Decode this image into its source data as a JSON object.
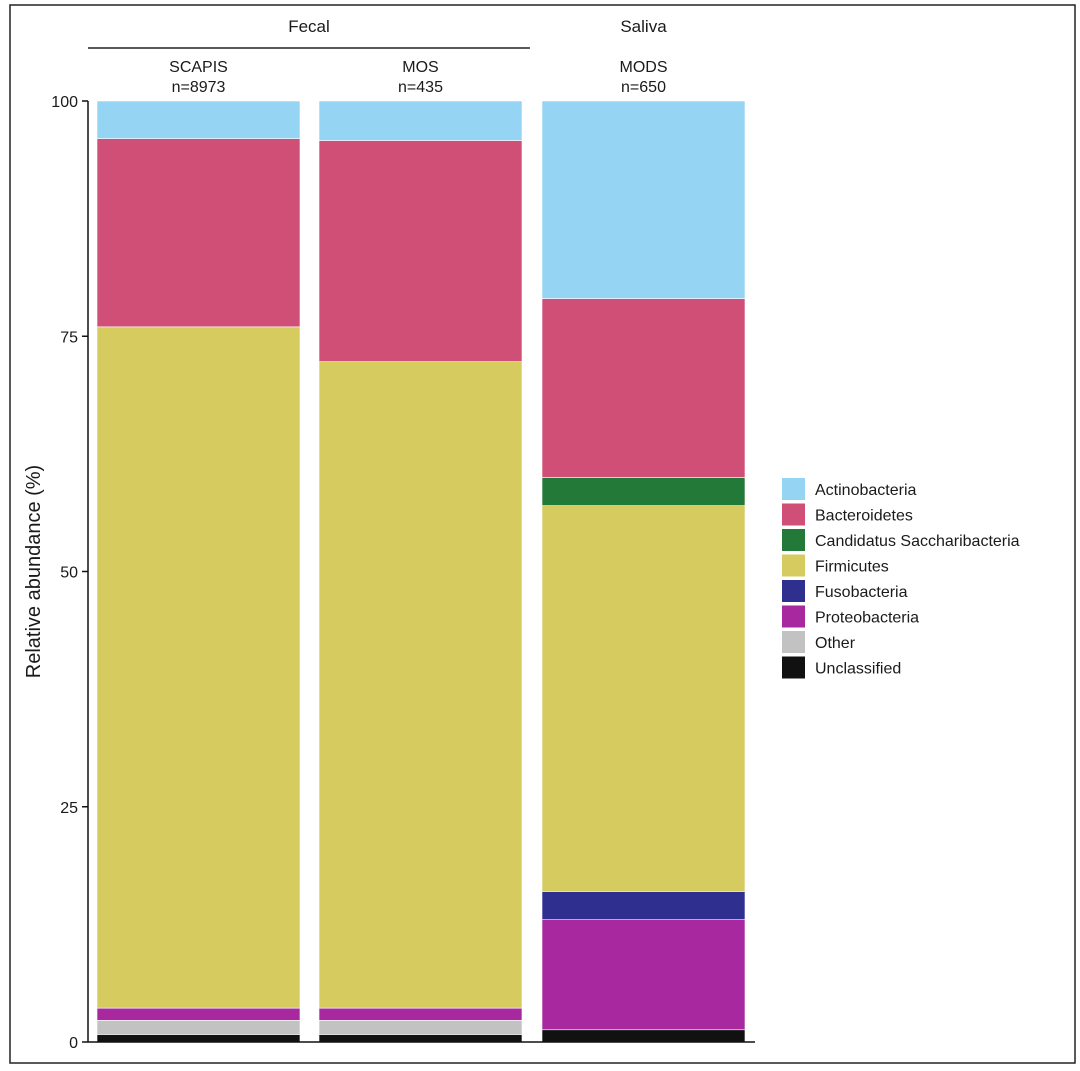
{
  "chart_data": {
    "type": "bar",
    "stacked": true,
    "ylabel": "Relative abundance (%)",
    "ylim": [
      0,
      100
    ],
    "yticks": [
      0,
      25,
      50,
      75,
      100
    ],
    "groups": [
      {
        "label": "Fecal",
        "panels": [
          "SCAPIS",
          "MOS"
        ]
      },
      {
        "label": "Saliva",
        "panels": [
          "MODS"
        ]
      }
    ],
    "categories": [
      "SCAPIS",
      "MOS",
      "MODS"
    ],
    "category_n": [
      "n=8973",
      "n=435",
      "n=650"
    ],
    "series": [
      {
        "name": "Unclassified",
        "color": "#111111",
        "values": [
          0.8,
          0.8,
          1.3
        ]
      },
      {
        "name": "Other",
        "color": "#c2c2c2",
        "values": [
          1.5,
          1.5,
          0.0
        ]
      },
      {
        "name": "Proteobacteria",
        "color": "#a8299f",
        "values": [
          1.3,
          1.3,
          11.7
        ]
      },
      {
        "name": "Fusobacteria",
        "color": "#2e2f8f",
        "values": [
          0.0,
          0.0,
          3.0
        ]
      },
      {
        "name": "Firmicutes",
        "color": "#d6cb5f",
        "values": [
          72.4,
          68.7,
          41.0
        ]
      },
      {
        "name": "Candidatus Saccharibacteria",
        "color": "#237a38",
        "values": [
          0.0,
          0.0,
          3.0
        ]
      },
      {
        "name": "Bacteroidetes",
        "color": "#cf4f76",
        "values": [
          20.0,
          23.5,
          19.0
        ]
      },
      {
        "name": "Actinobacteria",
        "color": "#95d4f2",
        "values": [
          4.0,
          4.2,
          21.0
        ]
      }
    ],
    "legend": {
      "position": "right",
      "order": [
        "Actinobacteria",
        "Bacteroidetes",
        "Candidatus Saccharibacteria",
        "Firmicutes",
        "Fusobacteria",
        "Proteobacteria",
        "Other",
        "Unclassified"
      ]
    }
  }
}
